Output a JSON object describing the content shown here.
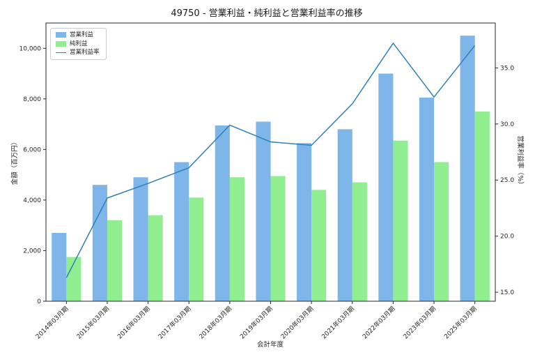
{
  "title": "49750 - 営業利益・純利益と営業利益率の推移",
  "legend": {
    "items": [
      {
        "label": "営業利益",
        "color": "#7EB6E9",
        "type": "patch"
      },
      {
        "label": "純利益",
        "color": "#90EE90",
        "type": "patch"
      },
      {
        "label": "営業利益率",
        "color": "#2F7FB8",
        "type": "line"
      }
    ]
  },
  "chart_data": {
    "type": "bar",
    "title": "49750 - 営業利益・純利益と営業利益率の推移",
    "xlabel": "会計年度",
    "ylabel_left": "金額（百万円）",
    "ylabel_right": "営業利益率（%）",
    "categories": [
      "2014年03月期",
      "2015年03月期",
      "2016年03月期",
      "2017年03月期",
      "2018年03月期",
      "2019年03月期",
      "2020年03月期",
      "2021年03月期",
      "2022年03月期",
      "2023年03月期",
      "2025年03月期"
    ],
    "series": [
      {
        "name": "営業利益",
        "type": "bar",
        "axis": "left",
        "color": "#7EB6E9",
        "values": [
          2700,
          4600,
          4900,
          5500,
          6950,
          7100,
          6250,
          6800,
          9000,
          8050,
          10500
        ]
      },
      {
        "name": "純利益",
        "type": "bar",
        "axis": "left",
        "color": "#90EE90",
        "values": [
          1750,
          3200,
          3400,
          4100,
          4900,
          4950,
          4400,
          4700,
          6350,
          5500,
          7500
        ]
      },
      {
        "name": "営業利益率",
        "type": "line",
        "axis": "right",
        "color": "#2F7FB8",
        "values": [
          16.3,
          23.4,
          24.7,
          26.1,
          29.9,
          28.4,
          28.1,
          31.8,
          37.2,
          32.4,
          37.0
        ]
      }
    ],
    "left_axis": {
      "min": 0,
      "max": 11000,
      "ticks": [
        0,
        2000,
        4000,
        6000,
        8000,
        10000
      ],
      "tick_labels": [
        "0",
        "2,000",
        "4,000",
        "6,000",
        "8,000",
        "10,000"
      ]
    },
    "right_axis": {
      "min": 14.2,
      "max": 39.0,
      "ticks": [
        15,
        20,
        25,
        30,
        35
      ],
      "tick_labels": [
        "15.0",
        "20.0",
        "25.0",
        "30.0",
        "35.0"
      ]
    },
    "grid": false,
    "legend_position": "upper left"
  }
}
